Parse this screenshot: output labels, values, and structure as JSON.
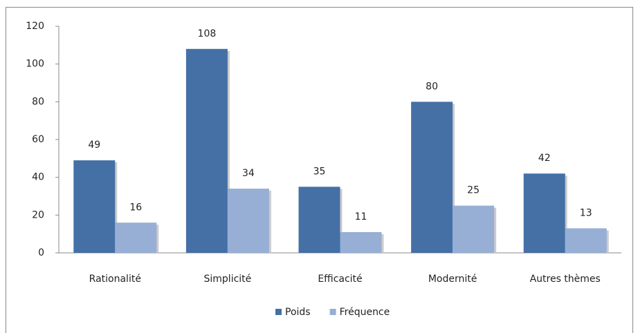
{
  "chart_data": {
    "type": "bar",
    "categories": [
      "Rationalité",
      "Simplicité",
      "Efficacité",
      "Modernité",
      "Autres thèmes"
    ],
    "series": [
      {
        "name": "Poids",
        "color": "#4470a6",
        "values": [
          49,
          108,
          35,
          80,
          42
        ]
      },
      {
        "name": "Fréquence",
        "color": "#97afd5",
        "values": [
          16,
          34,
          11,
          25,
          13
        ]
      }
    ],
    "ylim": [
      0,
      120
    ],
    "yticks": [
      0,
      20,
      40,
      60,
      80,
      100,
      120
    ],
    "grid": false,
    "legend": "bottom",
    "data_labels": true
  }
}
